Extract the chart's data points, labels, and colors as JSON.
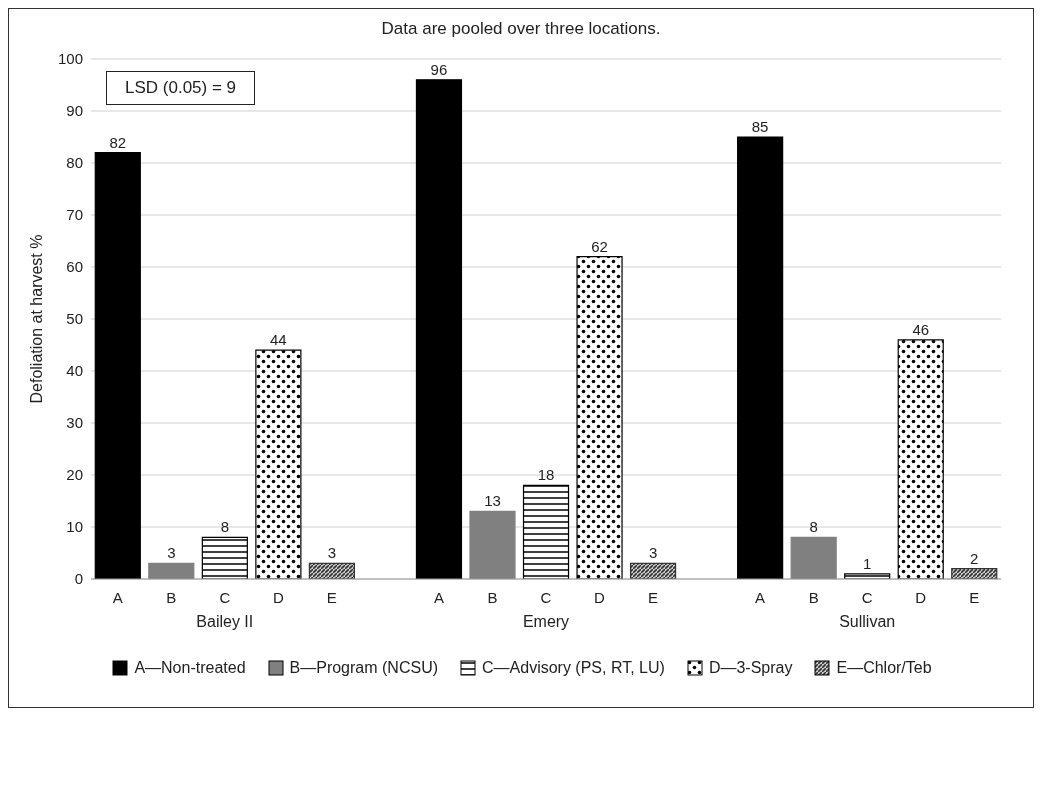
{
  "chart_data": {
    "type": "bar",
    "title": "Data are pooled over three locations.",
    "ylabel": "Defoliation at harvest %",
    "categories": [
      "A",
      "B",
      "C",
      "D",
      "E",
      null,
      "A",
      "B",
      "C",
      "D",
      "E",
      null,
      "A",
      "B",
      "C",
      "D",
      "E"
    ],
    "series": [
      {
        "name": "A—Non-treated",
        "color": "#000000",
        "values": [
          82,
          null,
          null,
          null,
          null,
          null,
          96,
          null,
          null,
          null,
          null,
          null,
          85,
          null,
          null,
          null,
          null
        ]
      },
      {
        "name": "B—Program (NCSU)",
        "color": "#808080",
        "values": [
          null,
          3,
          null,
          null,
          null,
          null,
          null,
          13,
          null,
          null,
          null,
          null,
          null,
          8,
          null,
          null,
          null
        ]
      },
      {
        "name": "C—Advisory (PS, RT, LU)",
        "color": "#000000",
        "values": [
          null,
          null,
          8,
          null,
          null,
          null,
          null,
          null,
          18,
          null,
          null,
          null,
          null,
          null,
          1,
          null,
          null
        ]
      },
      {
        "name": "D—3-Spray",
        "color": "#000000",
        "values": [
          null,
          null,
          null,
          44,
          null,
          null,
          null,
          null,
          null,
          62,
          null,
          null,
          null,
          null,
          null,
          46,
          null
        ]
      },
      {
        "name": "E—Chlor/Teb",
        "color": "#333333",
        "values": [
          null,
          null,
          null,
          null,
          3,
          null,
          null,
          null,
          null,
          null,
          3,
          null,
          null,
          null,
          null,
          null,
          2
        ]
      }
    ],
    "stacked": true,
    "ylim": [
      0,
      100
    ],
    "yticks": [
      0,
      10,
      20,
      30,
      40,
      50,
      60,
      70,
      80,
      90,
      100
    ],
    "grid": "y",
    "legend": "bottom",
    "data_labels": true,
    "annotations": [
      "LSD (0.05) = 9",
      "Bailey II",
      "Emery",
      "Sullivan"
    ]
  }
}
